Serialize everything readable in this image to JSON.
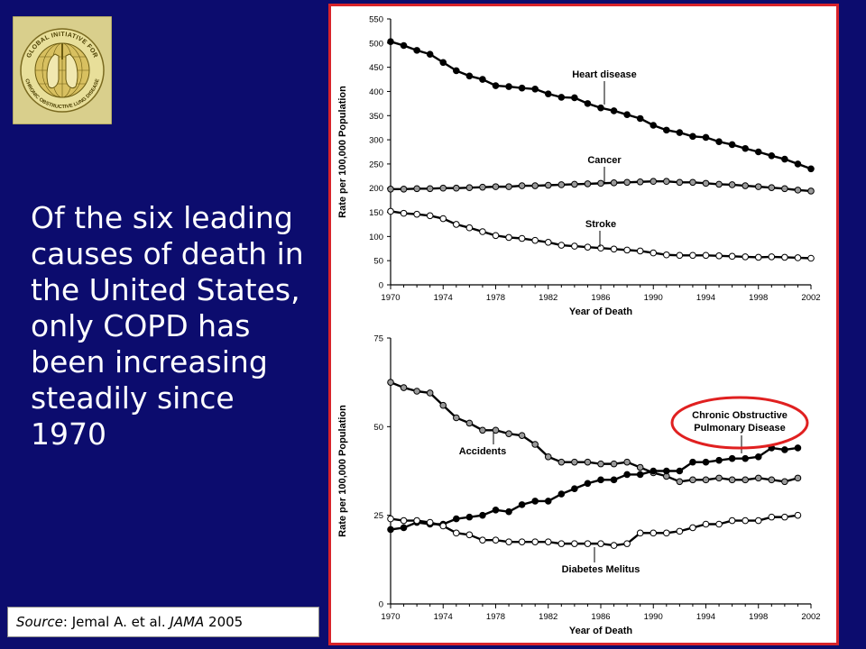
{
  "slide": {
    "headline": "Of the six leading causes of death in the United States, only COPD has been increasing steadily since 1970",
    "source_label": "Source",
    "source_sep": ":  ",
    "source_authors": "Jemal A. et al.  ",
    "source_journal": "JAMA",
    "source_year": " 2005",
    "logo_text_top": "GLOBAL INITIATIVE FOR",
    "logo_text_bottom": "CHRONIC OBSTRUCTIVE LUNG DISEASE",
    "colors": {
      "background": "#0c0c6e",
      "frame": "#d8232a",
      "highlight": "#e02020",
      "logo_bg": "#d9cf8c"
    }
  },
  "chart_data": [
    {
      "type": "line",
      "xlabel": "Year of Death",
      "ylabel": "Rate per 100,000 Population",
      "xlim": [
        1970,
        2002
      ],
      "ylim": [
        0,
        550
      ],
      "xticks": [
        1970,
        1974,
        1978,
        1982,
        1986,
        1990,
        1994,
        1998,
        2002
      ],
      "yticks": [
        0,
        50,
        100,
        150,
        200,
        250,
        300,
        350,
        400,
        450,
        500,
        550
      ],
      "series": [
        {
          "name": "Heart disease",
          "marker": "black",
          "x": [
            1970,
            1971,
            1972,
            1973,
            1974,
            1975,
            1976,
            1977,
            1978,
            1979,
            1980,
            1981,
            1982,
            1983,
            1984,
            1985,
            1986,
            1987,
            1988,
            1989,
            1990,
            1991,
            1992,
            1993,
            1994,
            1995,
            1996,
            1997,
            1998,
            1999,
            2000,
            2001,
            2002
          ],
          "values": [
            503,
            495,
            485,
            477,
            460,
            443,
            432,
            425,
            412,
            410,
            407,
            405,
            395,
            388,
            387,
            375,
            366,
            360,
            352,
            344,
            330,
            320,
            315,
            307,
            305,
            296,
            290,
            282,
            275,
            267,
            260,
            250,
            240
          ]
        },
        {
          "name": "Cancer",
          "marker": "gray",
          "x": [
            1970,
            1971,
            1972,
            1973,
            1974,
            1975,
            1976,
            1977,
            1978,
            1979,
            1980,
            1981,
            1982,
            1983,
            1984,
            1985,
            1986,
            1987,
            1988,
            1989,
            1990,
            1991,
            1992,
            1993,
            1994,
            1995,
            1996,
            1997,
            1998,
            1999,
            2000,
            2001,
            2002
          ],
          "values": [
            198,
            198,
            199,
            199,
            200,
            200,
            201,
            202,
            203,
            203,
            205,
            205,
            206,
            207,
            208,
            209,
            210,
            211,
            212,
            213,
            214,
            214,
            212,
            212,
            210,
            208,
            207,
            205,
            203,
            201,
            199,
            196,
            194
          ]
        },
        {
          "name": "Stroke",
          "marker": "white",
          "x": [
            1970,
            1971,
            1972,
            1973,
            1974,
            1975,
            1976,
            1977,
            1978,
            1979,
            1980,
            1981,
            1982,
            1983,
            1984,
            1985,
            1986,
            1987,
            1988,
            1989,
            1990,
            1991,
            1992,
            1993,
            1994,
            1995,
            1996,
            1997,
            1998,
            1999,
            2000,
            2001,
            2002
          ],
          "values": [
            152,
            148,
            146,
            143,
            137,
            125,
            118,
            110,
            102,
            98,
            96,
            92,
            88,
            82,
            80,
            78,
            76,
            74,
            72,
            70,
            66,
            62,
            61,
            61,
            61,
            60,
            59,
            58,
            57,
            58,
            57,
            56,
            55
          ]
        }
      ]
    },
    {
      "type": "line",
      "xlabel": "Year of Death",
      "ylabel": "Rate per 100,000 Population",
      "xlim": [
        1970,
        2002
      ],
      "ylim": [
        0,
        75
      ],
      "xticks": [
        1970,
        1974,
        1978,
        1982,
        1986,
        1990,
        1994,
        1998,
        2002
      ],
      "yticks": [
        0,
        25,
        50,
        75
      ],
      "series": [
        {
          "name": "Accidents",
          "marker": "gray",
          "x": [
            1970,
            1971,
            1972,
            1973,
            1974,
            1975,
            1976,
            1977,
            1978,
            1979,
            1980,
            1981,
            1982,
            1983,
            1984,
            1985,
            1986,
            1987,
            1988,
            1989,
            1990,
            1991,
            1992,
            1993,
            1994,
            1995,
            1996,
            1997,
            1998,
            1999,
            2000,
            2001
          ],
          "values": [
            62.5,
            61,
            60,
            59.5,
            56,
            52.5,
            51,
            49,
            49,
            48,
            47.5,
            45,
            41.5,
            40,
            40,
            40,
            39.5,
            39.5,
            40,
            38.5,
            37,
            36,
            34.5,
            35,
            35,
            35.5,
            35,
            35,
            35.5,
            35,
            34.5,
            35.5
          ]
        },
        {
          "name": "Chronic Obstructive Pulmonary Disease",
          "marker": "black",
          "x": [
            1970,
            1971,
            1972,
            1973,
            1974,
            1975,
            1976,
            1977,
            1978,
            1979,
            1980,
            1981,
            1982,
            1983,
            1984,
            1985,
            1986,
            1987,
            1988,
            1989,
            1990,
            1991,
            1992,
            1993,
            1994,
            1995,
            1996,
            1997,
            1998,
            1999,
            2000,
            2001
          ],
          "values": [
            21,
            21.5,
            23,
            22.5,
            22.5,
            24,
            24.5,
            25,
            26.5,
            26,
            28,
            29,
            29,
            31,
            32.5,
            34,
            35,
            35,
            36.5,
            36.5,
            37.5,
            37.5,
            37.5,
            40,
            40,
            40.5,
            41,
            41,
            41.5,
            44,
            43.5,
            44
          ]
        },
        {
          "name": "Diabetes Melitus",
          "marker": "white",
          "x": [
            1970,
            1971,
            1972,
            1973,
            1974,
            1975,
            1976,
            1977,
            1978,
            1979,
            1980,
            1981,
            1982,
            1983,
            1984,
            1985,
            1986,
            1987,
            1988,
            1989,
            1990,
            1991,
            1992,
            1993,
            1994,
            1995,
            1996,
            1997,
            1998,
            1999,
            2000,
            2001
          ],
          "values": [
            24,
            23.5,
            23.5,
            23,
            22,
            20,
            19.5,
            18,
            18,
            17.5,
            17.5,
            17.5,
            17.5,
            17,
            17,
            17,
            17,
            16.5,
            17,
            20,
            20,
            20,
            20.5,
            21.5,
            22.5,
            22.5,
            23.5,
            23.5,
            23.5,
            24.5,
            24.5,
            25
          ]
        }
      ]
    }
  ]
}
